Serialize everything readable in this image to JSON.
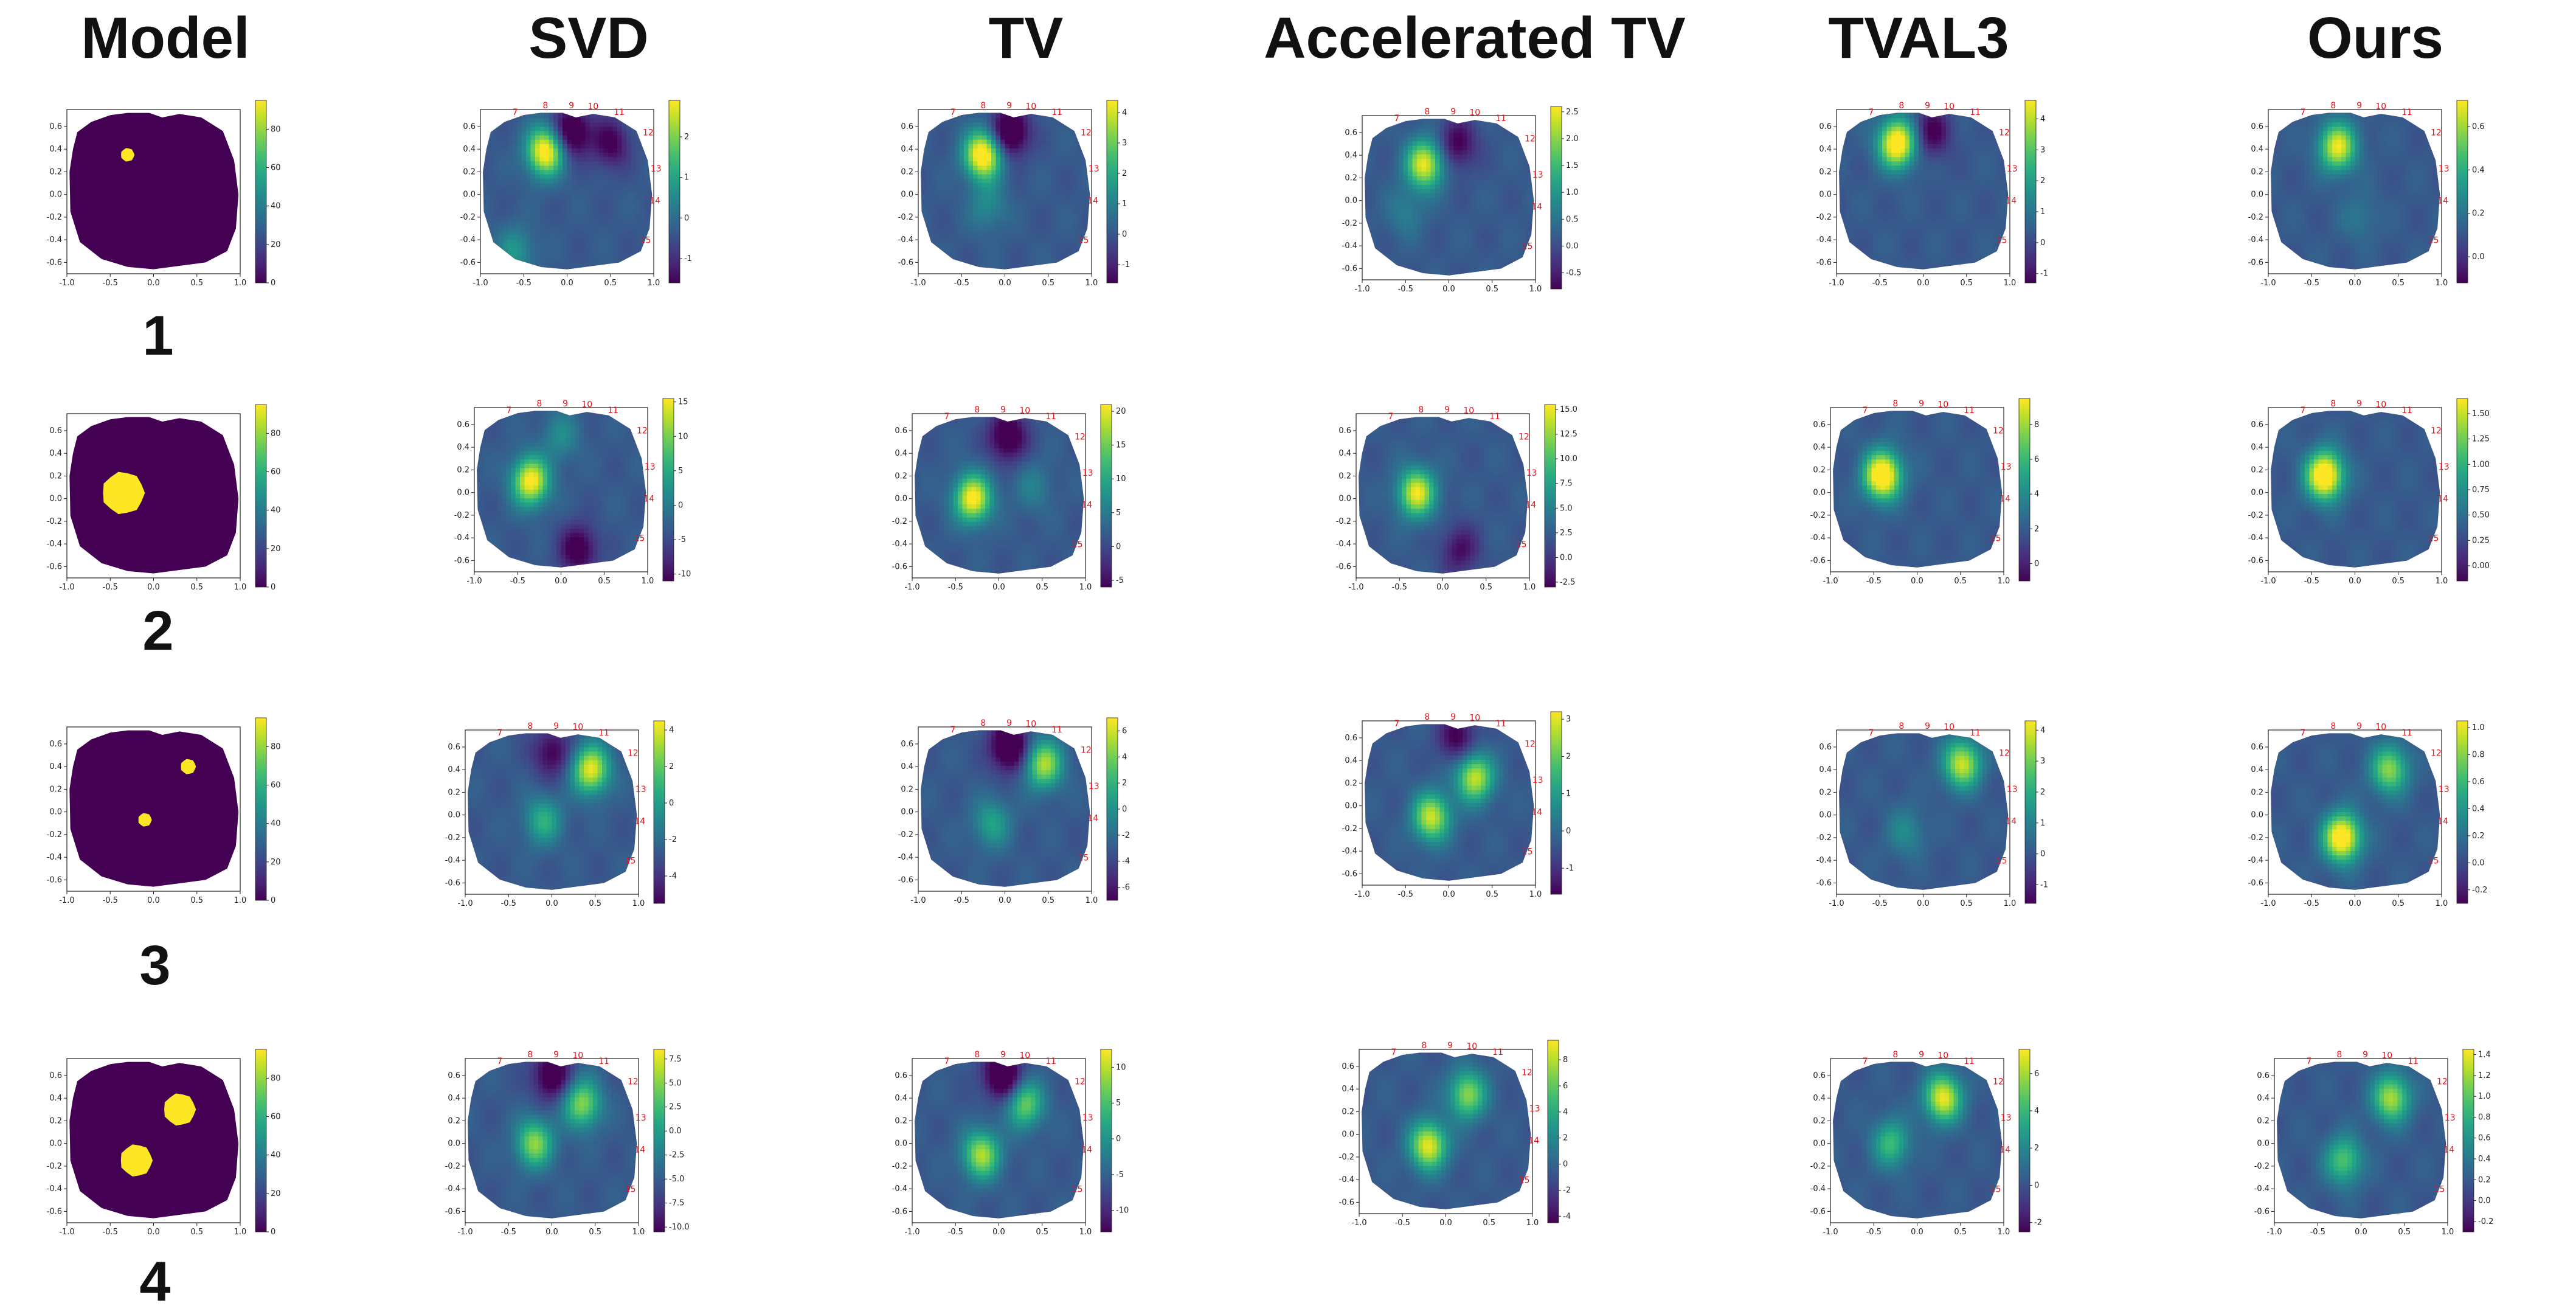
{
  "column_headers": [
    "Model",
    "SVD",
    "TV",
    "Accelerated TV",
    "TVAL3",
    "Ours"
  ],
  "row_labels": [
    "1",
    "2",
    "3",
    "4"
  ],
  "axes": {
    "x_ticks": [
      "-1.0",
      "-0.5",
      "0.0",
      "0.5",
      "1.0"
    ],
    "y_ticks": [
      "0.6",
      "0.4",
      "0.2",
      "0.0",
      "-0.2",
      "-0.4",
      "-0.6"
    ],
    "electrode_labels": [
      "7",
      "8",
      "9",
      "10",
      "11",
      "12",
      "13",
      "14",
      "15"
    ]
  },
  "colors": {
    "inclusion": "#fde725",
    "background_model": "#440154"
  },
  "chart_data": {
    "type": "heatmap",
    "colormap": "viridis",
    "xlim": [
      -1.0,
      1.0
    ],
    "ylim": [
      -0.7,
      0.75
    ],
    "rows": [
      {
        "label": "1",
        "model": {
          "colorbar_ticks": [
            "80",
            "60",
            "40",
            "20",
            "0"
          ],
          "cbar_range": [
            0,
            95
          ],
          "inclusions": [
            {
              "x": -0.3,
              "y": 0.35,
              "r": 0.08
            }
          ]
        },
        "panels": [
          {
            "method": "SVD",
            "colorbar_ticks": [
              "2",
              "1",
              "0",
              "-1"
            ],
            "cbar_range": [
              -1.6,
              2.9
            ],
            "blobs": [
              {
                "x": -0.25,
                "y": 0.38,
                "a": 0.8
              },
              {
                "x": 0.05,
                "y": 0.55,
                "a": -0.45
              },
              {
                "x": 0.5,
                "y": 0.45,
                "a": -0.3
              },
              {
                "x": -0.6,
                "y": -0.5,
                "a": 0.25
              }
            ]
          },
          {
            "method": "TV",
            "colorbar_ticks": [
              "4",
              "3",
              "2",
              "1",
              "0",
              "-1"
            ],
            "cbar_range": [
              -1.6,
              4.4
            ],
            "blobs": [
              {
                "x": -0.25,
                "y": 0.35,
                "a": 0.85
              },
              {
                "x": 0.05,
                "y": 0.55,
                "a": -0.5
              },
              {
                "x": -0.2,
                "y": -0.1,
                "a": 0.2
              }
            ]
          },
          {
            "method": "Accelerated TV",
            "colorbar_ticks": [
              "2.5",
              "2.0",
              "1.5",
              "1.0",
              "0.5",
              "0.0",
              "-0.5"
            ],
            "cbar_range": [
              -0.8,
              2.6
            ],
            "blobs": [
              {
                "x": -0.28,
                "y": 0.32,
                "a": 0.7
              },
              {
                "x": 0.1,
                "y": 0.5,
                "a": -0.3
              },
              {
                "x": -0.5,
                "y": -0.1,
                "a": 0.15
              }
            ]
          },
          {
            "method": "TVAL3",
            "colorbar_ticks": [
              "4",
              "3",
              "2",
              "1",
              "0",
              "-1"
            ],
            "cbar_range": [
              -1.3,
              4.6
            ],
            "blobs": [
              {
                "x": -0.3,
                "y": 0.45,
                "a": 0.85
              },
              {
                "x": 0.1,
                "y": 0.55,
                "a": -0.3
              }
            ]
          },
          {
            "method": "Ours",
            "colorbar_ticks": [
              "0.6",
              "0.4",
              "0.2",
              "0.0"
            ],
            "cbar_range": [
              -0.12,
              0.72
            ],
            "blobs": [
              {
                "x": -0.2,
                "y": 0.42,
                "a": 0.7
              },
              {
                "x": 0.05,
                "y": -0.2,
                "a": 0.12
              }
            ]
          }
        ]
      },
      {
        "label": "2",
        "model": {
          "colorbar_ticks": [
            "80",
            "60",
            "40",
            "20",
            "0"
          ],
          "cbar_range": [
            0,
            95
          ],
          "inclusions": [
            {
              "x": -0.35,
              "y": 0.05,
              "r": 0.25
            }
          ]
        },
        "panels": [
          {
            "method": "SVD",
            "colorbar_ticks": [
              "15",
              "10",
              "5",
              "0",
              "-5",
              "-10"
            ],
            "cbar_range": [
              -11,
              15.5
            ],
            "blobs": [
              {
                "x": -0.35,
                "y": 0.1,
                "a": 0.75
              },
              {
                "x": 0.0,
                "y": 0.5,
                "a": 0.2
              },
              {
                "x": 0.2,
                "y": -0.5,
                "a": -0.35
              }
            ]
          },
          {
            "method": "TV",
            "colorbar_ticks": [
              "20",
              "15",
              "10",
              "5",
              "0",
              "-5"
            ],
            "cbar_range": [
              -6,
              21
            ],
            "blobs": [
              {
                "x": -0.3,
                "y": 0.0,
                "a": 0.75
              },
              {
                "x": 0.1,
                "y": 0.55,
                "a": -0.4
              },
              {
                "x": 0.4,
                "y": 0.1,
                "a": 0.15
              }
            ]
          },
          {
            "method": "Accelerated TV",
            "colorbar_ticks": [
              "15.0",
              "12.5",
              "10.0",
              "7.5",
              "5.0",
              "2.5",
              "0.0",
              "-2.5"
            ],
            "cbar_range": [
              -3,
              15.5
            ],
            "blobs": [
              {
                "x": -0.3,
                "y": 0.05,
                "a": 0.7
              },
              {
                "x": 0.2,
                "y": -0.45,
                "a": -0.25
              }
            ]
          },
          {
            "method": "TVAL3",
            "colorbar_ticks": [
              "8",
              "6",
              "4",
              "2",
              "0"
            ],
            "cbar_range": [
              -1,
              9.5
            ],
            "blobs": [
              {
                "x": -0.4,
                "y": 0.15,
                "a": 0.9
              }
            ]
          },
          {
            "method": "Ours",
            "colorbar_ticks": [
              "1.50",
              "1.25",
              "1.00",
              "0.75",
              "0.50",
              "0.25",
              "0.00"
            ],
            "cbar_range": [
              -0.15,
              1.65
            ],
            "blobs": [
              {
                "x": -0.35,
                "y": 0.15,
                "a": 0.9
              }
            ]
          }
        ]
      },
      {
        "label": "3",
        "model": {
          "colorbar_ticks": [
            "80",
            "60",
            "40",
            "20",
            "0"
          ],
          "cbar_range": [
            0,
            95
          ],
          "inclusions": [
            {
              "x": 0.4,
              "y": 0.4,
              "r": 0.09
            },
            {
              "x": -0.1,
              "y": -0.07,
              "r": 0.08
            }
          ]
        },
        "panels": [
          {
            "method": "SVD",
            "colorbar_ticks": [
              "4",
              "2",
              "0",
              "-2",
              "-4"
            ],
            "cbar_range": [
              -5.5,
              4.5
            ],
            "blobs": [
              {
                "x": 0.45,
                "y": 0.4,
                "a": 0.7
              },
              {
                "x": -0.1,
                "y": -0.05,
                "a": 0.35
              },
              {
                "x": 0.0,
                "y": 0.55,
                "a": -0.3
              }
            ]
          },
          {
            "method": "TV",
            "colorbar_ticks": [
              "6",
              "4",
              "2",
              "0",
              "-2",
              "-4",
              "-6"
            ],
            "cbar_range": [
              -7,
              7
            ],
            "blobs": [
              {
                "x": 0.45,
                "y": 0.42,
                "a": 0.6
              },
              {
                "x": -0.15,
                "y": -0.1,
                "a": 0.3
              },
              {
                "x": 0.05,
                "y": 0.58,
                "a": -0.5
              }
            ]
          },
          {
            "method": "Accelerated TV",
            "colorbar_ticks": [
              "3",
              "2",
              "1",
              "0",
              "-1"
            ],
            "cbar_range": [
              -1.7,
              3.2
            ],
            "blobs": [
              {
                "x": 0.3,
                "y": 0.25,
                "a": 0.65
              },
              {
                "x": -0.2,
                "y": -0.1,
                "a": 0.65
              },
              {
                "x": 0.1,
                "y": 0.6,
                "a": -0.3
              }
            ]
          },
          {
            "method": "TVAL3",
            "colorbar_ticks": [
              "4",
              "3",
              "2",
              "1",
              "0",
              "-1"
            ],
            "cbar_range": [
              -1.6,
              4.3
            ],
            "blobs": [
              {
                "x": 0.45,
                "y": 0.45,
                "a": 0.65
              },
              {
                "x": -0.2,
                "y": -0.15,
                "a": 0.2
              }
            ]
          },
          {
            "method": "Ours",
            "colorbar_ticks": [
              "1.0",
              "0.8",
              "0.6",
              "0.4",
              "0.2",
              "0.0",
              "-0.2"
            ],
            "cbar_range": [
              -0.3,
              1.05
            ],
            "blobs": [
              {
                "x": 0.4,
                "y": 0.4,
                "a": 0.55
              },
              {
                "x": -0.15,
                "y": -0.2,
                "a": 0.85
              }
            ]
          }
        ]
      },
      {
        "label": "4",
        "model": {
          "colorbar_ticks": [
            "80",
            "60",
            "40",
            "20",
            "0"
          ],
          "cbar_range": [
            0,
            95
          ],
          "inclusions": [
            {
              "x": 0.3,
              "y": 0.3,
              "r": 0.19
            },
            {
              "x": -0.2,
              "y": -0.15,
              "r": 0.19
            }
          ]
        },
        "panels": [
          {
            "method": "SVD",
            "colorbar_ticks": [
              "7.5",
              "5.0",
              "2.5",
              "0.0",
              "-2.5",
              "-5.0",
              "-7.5",
              "-10.0"
            ],
            "cbar_range": [
              -10.5,
              8.5
            ],
            "blobs": [
              {
                "x": -0.2,
                "y": 0.0,
                "a": 0.55
              },
              {
                "x": 0.35,
                "y": 0.35,
                "a": 0.55
              },
              {
                "x": 0.0,
                "y": 0.6,
                "a": -0.4
              }
            ]
          },
          {
            "method": "TV",
            "colorbar_ticks": [
              "10",
              "5",
              "0",
              "-5",
              "-10"
            ],
            "cbar_range": [
              -13,
              12.5
            ],
            "blobs": [
              {
                "x": -0.2,
                "y": -0.1,
                "a": 0.6
              },
              {
                "x": 0.3,
                "y": 0.35,
                "a": 0.5
              },
              {
                "x": 0.05,
                "y": 0.6,
                "a": -0.5
              }
            ]
          },
          {
            "method": "Accelerated TV",
            "colorbar_ticks": [
              "8",
              "6",
              "4",
              "2",
              "0",
              "-2",
              "-4"
            ],
            "cbar_range": [
              -4.5,
              9.5
            ],
            "blobs": [
              {
                "x": -0.2,
                "y": -0.1,
                "a": 0.7
              },
              {
                "x": 0.25,
                "y": 0.35,
                "a": 0.55
              }
            ]
          },
          {
            "method": "TVAL3",
            "colorbar_ticks": [
              "6",
              "4",
              "2",
              "0",
              "-2"
            ],
            "cbar_range": [
              -2.5,
              7.3
            ],
            "blobs": [
              {
                "x": 0.3,
                "y": 0.4,
                "a": 0.7
              },
              {
                "x": -0.3,
                "y": 0.0,
                "a": 0.4
              }
            ]
          },
          {
            "method": "Ours",
            "colorbar_ticks": [
              "1.4",
              "1.2",
              "1.0",
              "0.8",
              "0.6",
              "0.4",
              "0.2",
              "0.0",
              "-0.2"
            ],
            "cbar_range": [
              -0.3,
              1.45
            ],
            "blobs": [
              {
                "x": 0.35,
                "y": 0.4,
                "a": 0.6
              },
              {
                "x": -0.2,
                "y": -0.15,
                "a": 0.45
              }
            ]
          }
        ]
      }
    ]
  }
}
